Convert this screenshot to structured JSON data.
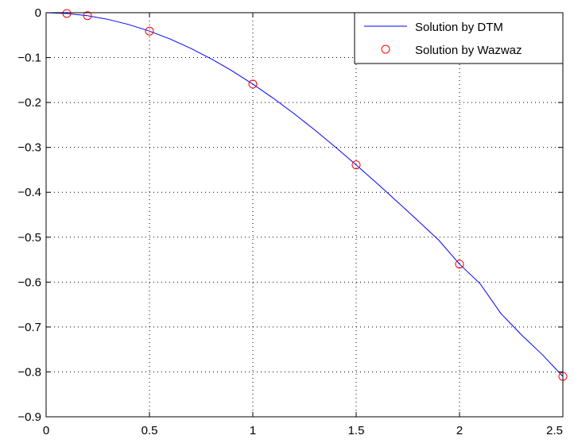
{
  "chart_data": {
    "type": "line",
    "title": "",
    "xlabel": "",
    "ylabel": "",
    "xlim": [
      0,
      2.5
    ],
    "ylim": [
      -0.9,
      0
    ],
    "x_ticks": [
      0,
      0.5,
      1,
      1.5,
      2,
      2.5
    ],
    "x_tick_labels": [
      "0",
      "0.5",
      "1",
      "1.5",
      "2",
      "2.5"
    ],
    "y_ticks": [
      0,
      -0.1,
      -0.2,
      -0.3,
      -0.4,
      -0.5,
      -0.6,
      -0.7,
      -0.8,
      -0.9
    ],
    "y_tick_labels": [
      "0",
      "−0.1",
      "−0.2",
      "−0.3",
      "−0.4",
      "−0.5",
      "−0.6",
      "−0.7",
      "−0.8",
      "−0.9"
    ],
    "grid": true,
    "legend_position": "top-right",
    "series": [
      {
        "name": "Solution by DTM",
        "style": "line",
        "color": "#0000ff",
        "x": [
          0,
          0.1,
          0.2,
          0.3,
          0.4,
          0.5,
          0.6,
          0.7,
          0.8,
          0.9,
          1.0,
          1.1,
          1.2,
          1.3,
          1.4,
          1.5,
          1.6,
          1.7,
          1.8,
          1.9,
          2.0,
          2.1,
          2.2,
          2.3,
          2.4,
          2.5
        ],
        "values": [
          0,
          -0.0017,
          -0.0066,
          -0.0149,
          -0.0264,
          -0.041,
          -0.0587,
          -0.0795,
          -0.1031,
          -0.1297,
          -0.159,
          -0.1908,
          -0.225,
          -0.2613,
          -0.2995,
          -0.339,
          -0.3797,
          -0.4214,
          -0.4638,
          -0.5068,
          -0.56,
          -0.6037,
          -0.6698,
          -0.7177,
          -0.7613,
          -0.81
        ]
      },
      {
        "name": "Solution by Wazwaz",
        "style": "markers",
        "marker": "circle",
        "color": "#ff0000",
        "x": [
          0.1,
          0.2,
          0.5,
          1.0,
          1.5,
          2.0,
          2.5
        ],
        "values": [
          -0.0017,
          -0.0066,
          -0.041,
          -0.159,
          -0.339,
          -0.56,
          -0.81
        ]
      }
    ]
  }
}
